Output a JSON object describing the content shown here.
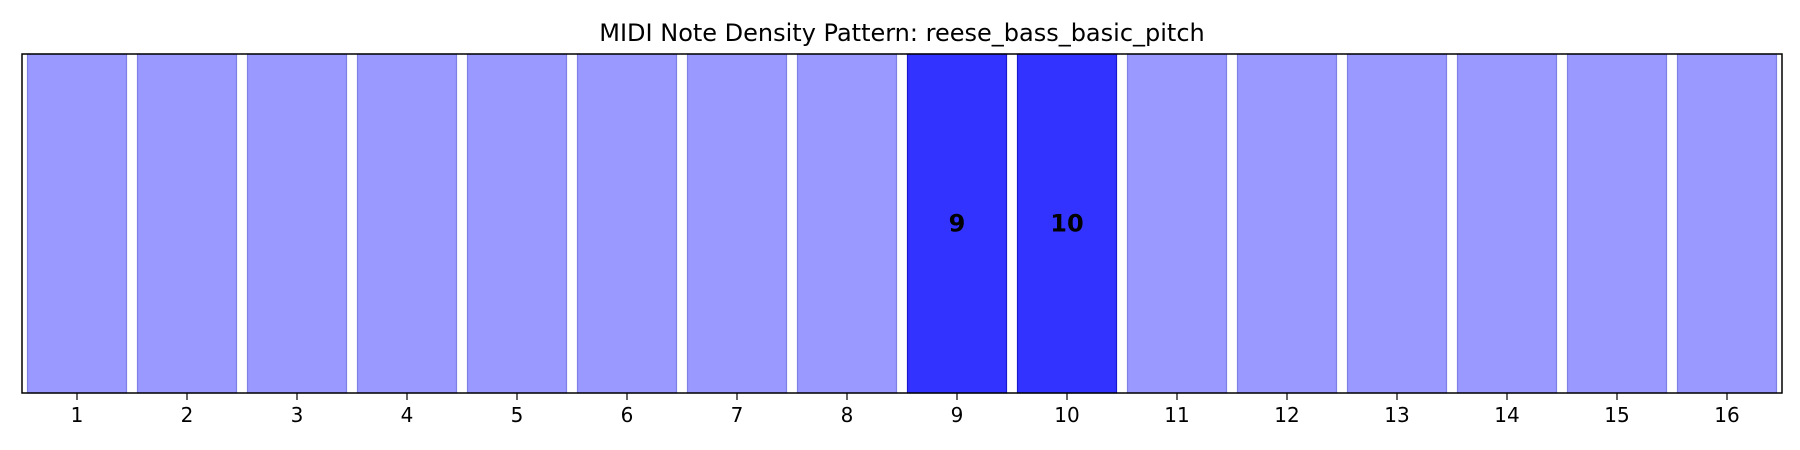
{
  "chart_data": {
    "type": "bar",
    "title": "MIDI Note Density Pattern: reese_bass_basic_pitch",
    "categories": [
      "1",
      "2",
      "3",
      "4",
      "5",
      "6",
      "7",
      "8",
      "9",
      "10",
      "11",
      "12",
      "13",
      "14",
      "15",
      "16"
    ],
    "values": [
      1,
      1,
      1,
      1,
      1,
      1,
      1,
      1,
      1,
      1,
      1,
      1,
      1,
      1,
      1,
      1
    ],
    "highlighted": [
      9,
      10
    ],
    "bar_labels": [
      "",
      "",
      "",
      "",
      "",
      "",
      "",
      "",
      "9",
      "10",
      "",
      "",
      "",
      "",
      "",
      ""
    ],
    "xlabel": "",
    "ylabel": "",
    "ylim": [
      0,
      1
    ],
    "y_ticks_visible": false,
    "grid": false,
    "colors": {
      "normal_fill": "#9999ff",
      "normal_edge": "#7f7fe5",
      "highlight_fill": "#3333ff",
      "highlight_edge": "#1a1acc",
      "axes": "#000000"
    }
  }
}
